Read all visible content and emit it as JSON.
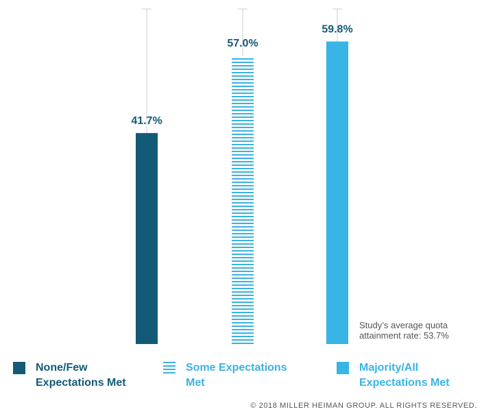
{
  "chart_data": {
    "type": "bar",
    "categories": [
      "None/Few Expectations Met",
      "Some Expectations Met",
      "Majority/All Expectations Met"
    ],
    "values": [
      41.7,
      57.0,
      59.8
    ],
    "value_labels": [
      "41.7%",
      "57.0%",
      "59.8%"
    ],
    "ylim": [
      0,
      68
    ],
    "grid": false,
    "legend_position": "bottom",
    "legend": [
      "None/Few\nExpectations Met",
      "Some Expectations\nMet",
      "Majority/All\nExpectations Met"
    ],
    "annotation": "Study’s average quota\nattainment rate: 53.7%"
  },
  "colors": {
    "none_few": "#135a77",
    "some": "#39b2e3",
    "majority_all": "#38b4e6",
    "value_label": "#135a77",
    "guide_line": "#cfcfcf"
  },
  "bar_styles": [
    "solid",
    "striped",
    "solid"
  ],
  "copyright": "© 2018 MILLER HEIMAN GROUP. ALL RIGHTS RESERVED."
}
